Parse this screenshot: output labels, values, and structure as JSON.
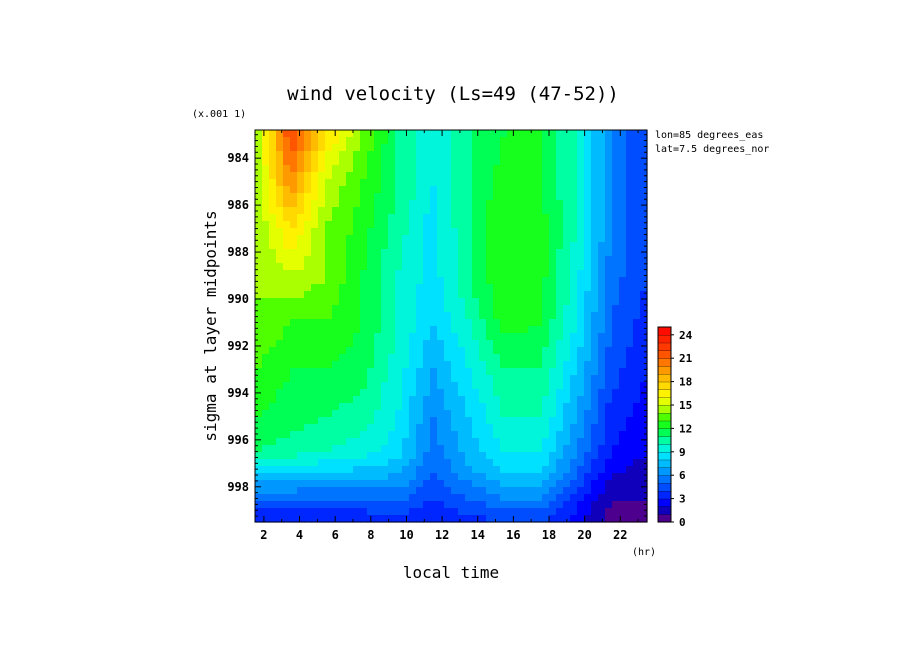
{
  "chart_data": {
    "type": "heatmap",
    "title": "wind velocity (Ls=49 (47-52))",
    "xlabel": "local time",
    "x_unit": "(hr)",
    "ylabel": "sigma at layer midpoints",
    "y_scale_note": "(x.001 1)",
    "annotations": [
      "lon=85 degrees_eas",
      "lat=7.5 degrees_nor"
    ],
    "xlim": [
      1.5,
      23.5
    ],
    "ylim": [
      982.8,
      999.5
    ],
    "y_inverted": true,
    "x_ticks": [
      2,
      4,
      6,
      8,
      10,
      12,
      14,
      16,
      18,
      20,
      22
    ],
    "y_ticks": [
      984,
      986,
      988,
      990,
      992,
      994,
      996,
      998
    ],
    "x": [
      1.5,
      3.5,
      5.5,
      7.5,
      9.5,
      11.5,
      13.5,
      15.5,
      17.5,
      19.5,
      21.5,
      23.5
    ],
    "y": [
      983,
      985,
      987,
      989,
      991,
      993,
      995,
      996.5,
      997.5,
      998.5,
      999.5
    ],
    "z": [
      [
        14,
        22,
        17,
        14,
        11,
        9,
        11,
        12,
        12,
        10,
        6,
        4
      ],
      [
        14,
        20,
        15,
        13,
        11,
        9,
        11,
        12.5,
        12,
        10,
        6,
        4
      ],
      [
        14,
        17,
        14,
        12.5,
        10.5,
        8.5,
        11,
        13,
        12.5,
        10,
        6,
        4
      ],
      [
        14,
        15,
        14,
        12,
        10,
        8.5,
        11,
        13,
        12.5,
        9.5,
        5.5,
        4
      ],
      [
        14,
        13,
        13,
        12,
        10,
        8,
        10,
        12.5,
        12,
        9,
        5,
        3.5
      ],
      [
        13,
        12,
        12,
        11.5,
        9.5,
        7,
        9,
        11,
        11,
        8,
        4.5,
        3
      ],
      [
        12,
        11.5,
        11,
        10.5,
        9,
        6,
        8,
        10,
        10,
        7,
        3.5,
        2.5
      ],
      [
        11,
        10.5,
        10,
        9.5,
        8.5,
        5.5,
        7.5,
        9,
        9,
        6,
        3,
        2
      ],
      [
        8,
        8,
        7.5,
        7.5,
        7,
        5,
        6.5,
        8,
        8,
        5,
        2,
        1.5
      ],
      [
        5,
        5,
        5,
        5,
        5.5,
        4,
        5,
        6,
        6,
        3.5,
        1,
        1
      ],
      [
        3,
        3,
        3,
        3,
        3.5,
        3,
        3.5,
        4,
        4,
        2.5,
        0.5,
        0.5
      ]
    ],
    "colorbar": {
      "ticks": [
        0,
        3,
        6,
        9,
        12,
        15,
        18,
        21,
        24
      ],
      "min": 0,
      "max": 25,
      "step": 1
    },
    "colormap_stops": [
      {
        "v": 0,
        "color": "#800080"
      },
      {
        "v": 1,
        "color": "#1a0099"
      },
      {
        "v": 2.5,
        "color": "#0000ff"
      },
      {
        "v": 5,
        "color": "#0060ff"
      },
      {
        "v": 7,
        "color": "#00aaff"
      },
      {
        "v": 8.5,
        "color": "#00e0ff"
      },
      {
        "v": 10,
        "color": "#00ffc8"
      },
      {
        "v": 11.5,
        "color": "#00ff55"
      },
      {
        "v": 13,
        "color": "#22ff00"
      },
      {
        "v": 14.5,
        "color": "#aaff00"
      },
      {
        "v": 16,
        "color": "#ffff00"
      },
      {
        "v": 18,
        "color": "#ffcc00"
      },
      {
        "v": 20,
        "color": "#ff8800"
      },
      {
        "v": 22,
        "color": "#ff4400"
      },
      {
        "v": 25,
        "color": "#ff0000"
      }
    ]
  }
}
